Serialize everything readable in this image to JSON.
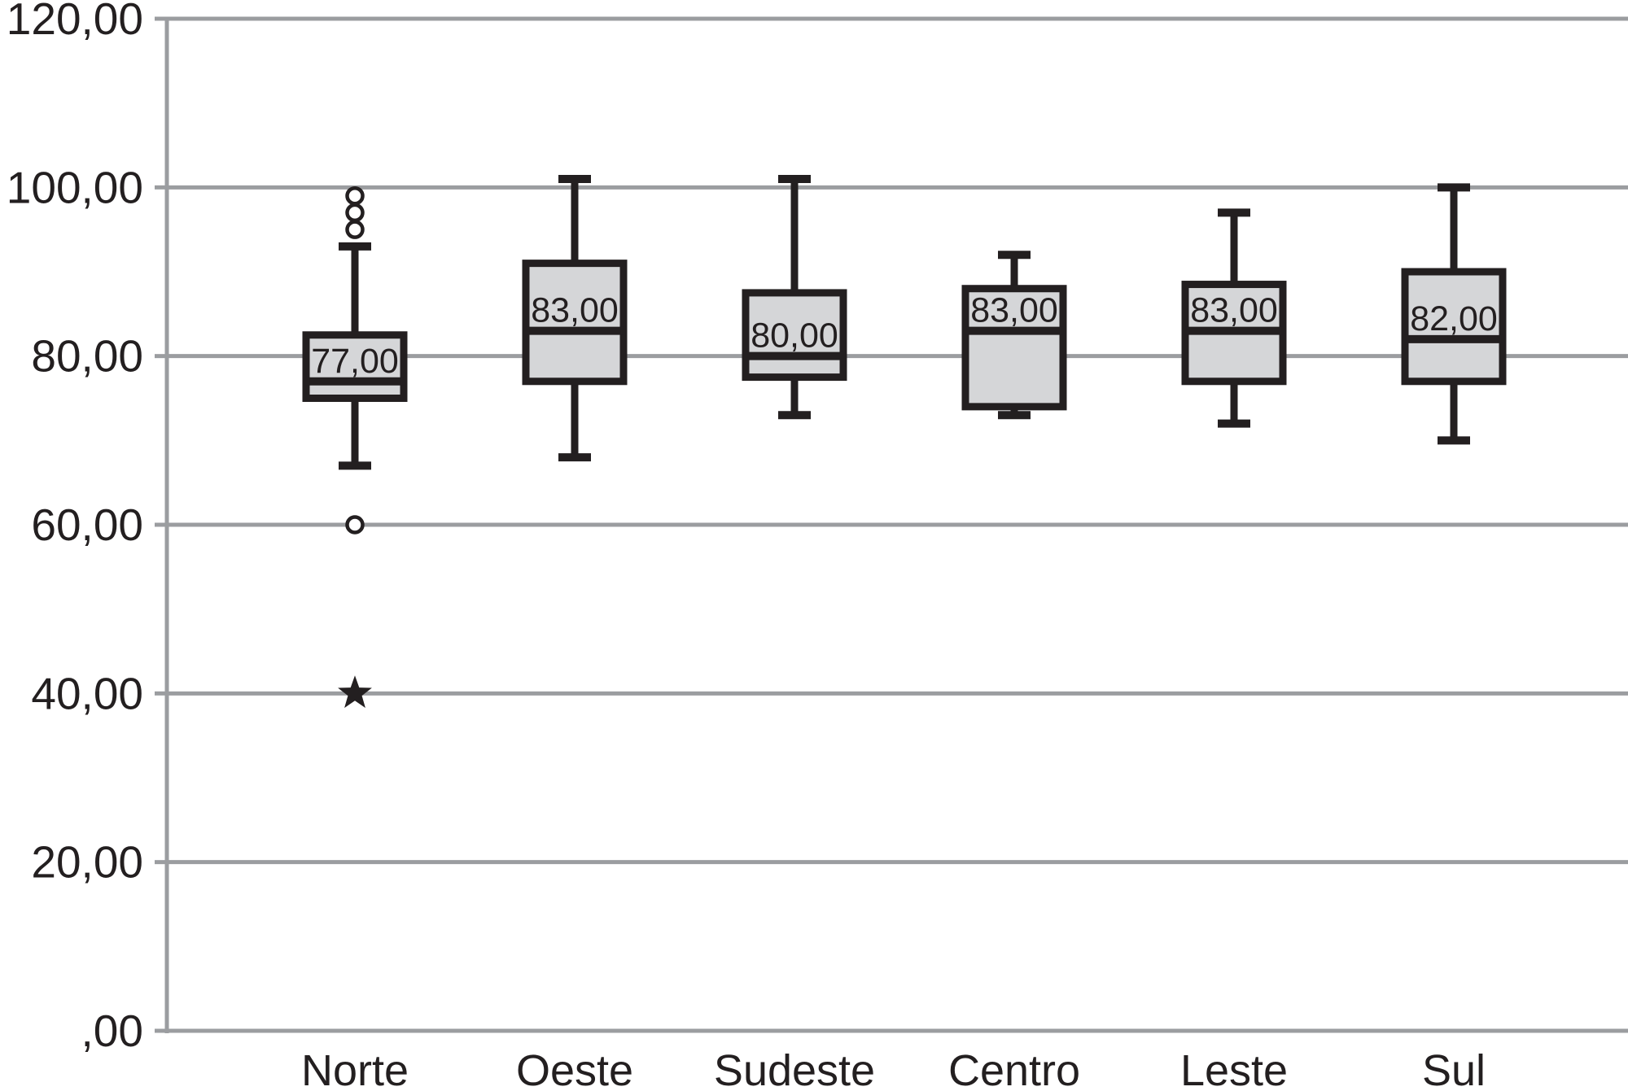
{
  "style": {
    "background": "#ffffff",
    "grid_color": "#9b9da0",
    "line_color": "#231f20",
    "box_fill": "#d5d6d8",
    "text_color": "#231f20"
  },
  "chart_data": {
    "type": "boxplot",
    "title": "",
    "xlabel": "",
    "ylabel": "",
    "legend": "none",
    "grid": true,
    "decimal_style": "comma",
    "categories": [
      "Norte",
      "Oeste",
      "Sudeste",
      "Centro",
      "Leste",
      "Sul"
    ],
    "y_axis": {
      "min": 0,
      "max": 120,
      "tick_step": 20,
      "tick_values": [
        120,
        100,
        80,
        60,
        40,
        20,
        0
      ],
      "tick_labels": [
        "120,00",
        "100,00",
        "80,00",
        "60,00",
        "40,00",
        "20,00",
        ",00"
      ]
    },
    "series": [
      {
        "category": "Norte",
        "whisker_low": 67,
        "q1": 75,
        "median": 77,
        "q3": 82.5,
        "whisker_high": 93,
        "median_label": "77,00",
        "outliers": [
          {
            "value": 99,
            "marker": "circle"
          },
          {
            "value": 97,
            "marker": "circle"
          },
          {
            "value": 95,
            "marker": "circle"
          },
          {
            "value": 60,
            "marker": "circle"
          }
        ],
        "extremes": [
          {
            "value": 40,
            "marker": "star"
          }
        ]
      },
      {
        "category": "Oeste",
        "whisker_low": 68,
        "q1": 77,
        "median": 83,
        "q3": 91,
        "whisker_high": 101,
        "median_label": "83,00",
        "outliers": [],
        "extremes": []
      },
      {
        "category": "Sudeste",
        "whisker_low": 73,
        "q1": 77.5,
        "median": 80,
        "q3": 87.5,
        "whisker_high": 101,
        "median_label": "80,00",
        "outliers": [],
        "extremes": []
      },
      {
        "category": "Centro",
        "whisker_low": 73,
        "q1": 74,
        "median": 83,
        "q3": 88,
        "whisker_high": 92,
        "median_label": "83,00",
        "outliers": [],
        "extremes": []
      },
      {
        "category": "Leste",
        "whisker_low": 72,
        "q1": 77,
        "median": 83,
        "q3": 88.5,
        "whisker_high": 97,
        "median_label": "83,00",
        "outliers": [],
        "extremes": []
      },
      {
        "category": "Sul",
        "whisker_low": 70,
        "q1": 77,
        "median": 82,
        "q3": 90,
        "whisker_high": 100,
        "median_label": "82,00",
        "outliers": [],
        "extremes": []
      }
    ]
  }
}
